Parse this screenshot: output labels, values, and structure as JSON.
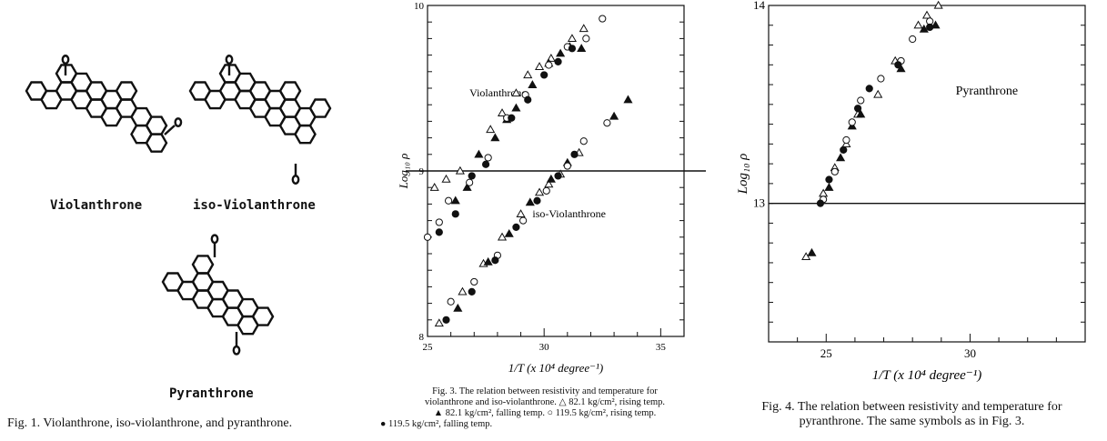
{
  "fig1": {
    "labels": [
      "Violanthrone",
      "iso-Violanthrone",
      "Pyranthrone"
    ],
    "caption": "Fig. 1. Violanthrone, iso-violanthrone, and pyranthrone."
  },
  "fig3": {
    "caption_line1": "Fig. 3. The relation between resistivity and temperature for",
    "caption_line2": "violanthrone and iso-violanthrone. △ 82.1 kg/cm², rising temp.",
    "caption_line3": "▲ 82.1 kg/cm², falling temp. ○ 119.5 kg/cm², rising temp.",
    "caption_line4": "● 119.5 kg/cm², falling temp."
  },
  "fig4": {
    "caption_line1": "Fig. 4. The relation between resistivity and temperature for",
    "caption_line2": "pyranthrone. The same symbols as in Fig. 3."
  },
  "chart_data": [
    {
      "type": "scatter",
      "title": "",
      "xlabel": "1/T (x 10⁴ degree⁻¹)",
      "ylabel": "Log₁₀ ρ",
      "xlim": [
        25,
        36
      ],
      "ylim": [
        8,
        10
      ],
      "xticks": [
        25,
        30,
        35
      ],
      "yticks": [
        8,
        9,
        10
      ],
      "annotations": [
        "Violanthrone",
        "iso-Violanthrone"
      ],
      "marker_key": {
        "open-triangle": "82.1 kg/cm², rising temp.",
        "filled-triangle": "82.1 kg/cm², falling temp.",
        "open-circle": "119.5 kg/cm², rising temp.",
        "filled-circle": "119.5 kg/cm², falling temp."
      },
      "series": [
        {
          "marker": "open-triangle",
          "points": [
            [
              25.3,
              8.9
            ],
            [
              25.8,
              8.95
            ],
            [
              26.4,
              9.0
            ],
            [
              27.7,
              9.25
            ],
            [
              28.2,
              9.35
            ],
            [
              28.8,
              9.47
            ],
            [
              29.3,
              9.58
            ],
            [
              29.8,
              9.63
            ],
            [
              30.3,
              9.68
            ],
            [
              31.2,
              9.8
            ],
            [
              31.7,
              9.86
            ],
            [
              25.5,
              8.08
            ],
            [
              26.5,
              8.27
            ],
            [
              27.4,
              8.44
            ],
            [
              28.2,
              8.6
            ],
            [
              29.0,
              8.74
            ],
            [
              29.8,
              8.87
            ],
            [
              30.2,
              8.92
            ],
            [
              30.7,
              8.98
            ],
            [
              31.5,
              9.11
            ]
          ]
        },
        {
          "marker": "filled-triangle",
          "points": [
            [
              26.2,
              8.82
            ],
            [
              26.7,
              8.9
            ],
            [
              27.2,
              9.1
            ],
            [
              27.9,
              9.2
            ],
            [
              28.4,
              9.31
            ],
            [
              28.8,
              9.38
            ],
            [
              29.5,
              9.52
            ],
            [
              30.2,
              9.65
            ],
            [
              30.7,
              9.71
            ],
            [
              31.1,
              9.75
            ],
            [
              31.6,
              9.74
            ],
            [
              26.3,
              8.17
            ],
            [
              27.6,
              8.45
            ],
            [
              28.5,
              8.62
            ],
            [
              29.4,
              8.81
            ],
            [
              30.3,
              8.95
            ],
            [
              31.0,
              9.05
            ],
            [
              33.0,
              9.33
            ],
            [
              33.6,
              9.43
            ]
          ]
        },
        {
          "marker": "open-circle",
          "points": [
            [
              25.0,
              8.6
            ],
            [
              25.5,
              8.69
            ],
            [
              25.9,
              8.82
            ],
            [
              26.8,
              8.93
            ],
            [
              27.6,
              9.08
            ],
            [
              28.4,
              9.32
            ],
            [
              29.2,
              9.46
            ],
            [
              30.2,
              9.64
            ],
            [
              31.0,
              9.75
            ],
            [
              31.8,
              9.8
            ],
            [
              32.5,
              9.92
            ],
            [
              26.0,
              8.21
            ],
            [
              27.0,
              8.33
            ],
            [
              28.0,
              8.49
            ],
            [
              29.1,
              8.7
            ],
            [
              30.1,
              8.88
            ],
            [
              31.0,
              9.03
            ],
            [
              31.7,
              9.18
            ],
            [
              32.7,
              9.29
            ]
          ]
        },
        {
          "marker": "filled-circle",
          "points": [
            [
              25.5,
              8.63
            ],
            [
              26.2,
              8.74
            ],
            [
              26.9,
              8.97
            ],
            [
              27.5,
              9.04
            ],
            [
              28.6,
              9.32
            ],
            [
              29.3,
              9.43
            ],
            [
              30.0,
              9.58
            ],
            [
              30.6,
              9.66
            ],
            [
              31.2,
              9.74
            ],
            [
              25.8,
              8.1
            ],
            [
              26.9,
              8.27
            ],
            [
              27.9,
              8.46
            ],
            [
              28.8,
              8.66
            ],
            [
              29.7,
              8.82
            ],
            [
              30.6,
              8.97
            ],
            [
              31.3,
              9.1
            ]
          ]
        }
      ]
    },
    {
      "type": "scatter",
      "title": "",
      "xlabel": "1/T (x 10⁴ degree⁻¹)",
      "ylabel": "Log₁₀ ρ",
      "xlim": [
        23,
        34
      ],
      "ylim": [
        12.3,
        14
      ],
      "xticks": [
        25,
        30
      ],
      "yticks": [
        13,
        14
      ],
      "annotations": [
        "Pyranthrone"
      ],
      "series": [
        {
          "marker": "open-triangle",
          "points": [
            [
              24.3,
              12.73
            ],
            [
              24.9,
              13.05
            ],
            [
              25.3,
              13.18
            ],
            [
              25.7,
              13.3
            ],
            [
              26.1,
              13.45
            ],
            [
              26.8,
              13.55
            ],
            [
              27.4,
              13.72
            ],
            [
              28.2,
              13.9
            ],
            [
              28.5,
              13.95
            ],
            [
              28.9,
              14.0
            ]
          ]
        },
        {
          "marker": "filled-triangle",
          "points": [
            [
              24.5,
              12.75
            ],
            [
              25.1,
              13.08
            ],
            [
              25.5,
              13.23
            ],
            [
              25.9,
              13.39
            ],
            [
              26.2,
              13.45
            ],
            [
              27.6,
              13.68
            ],
            [
              28.4,
              13.88
            ],
            [
              28.8,
              13.9
            ]
          ]
        },
        {
          "marker": "open-circle",
          "points": [
            [
              24.9,
              13.02
            ],
            [
              25.3,
              13.16
            ],
            [
              25.7,
              13.32
            ],
            [
              25.9,
              13.41
            ],
            [
              26.2,
              13.52
            ],
            [
              26.9,
              13.63
            ],
            [
              27.6,
              13.72
            ],
            [
              28.0,
              13.83
            ],
            [
              28.6,
              13.92
            ]
          ]
        },
        {
          "marker": "filled-circle",
          "points": [
            [
              24.8,
              13.0
            ],
            [
              25.1,
              13.12
            ],
            [
              25.6,
              13.27
            ],
            [
              26.1,
              13.48
            ],
            [
              26.5,
              13.58
            ],
            [
              27.5,
              13.7
            ],
            [
              28.6,
              13.89
            ]
          ]
        }
      ]
    }
  ]
}
